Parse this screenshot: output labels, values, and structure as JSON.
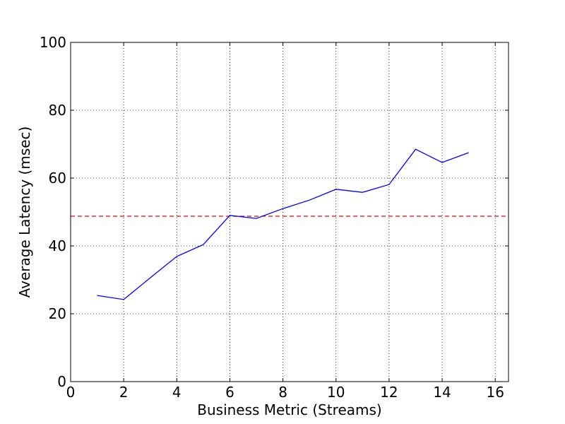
{
  "chart_data": {
    "type": "line",
    "xlabel": "Business Metric (Streams)",
    "ylabel": "Average Latency (msec)",
    "x": [
      1,
      2,
      3,
      4,
      5,
      6,
      7,
      8,
      9,
      10,
      11,
      12,
      13,
      14,
      15
    ],
    "series": [
      {
        "color": "#0000ff",
        "values": [
          25.4,
          24.2,
          30.6,
          36.9,
          40.4,
          49.0,
          48.1,
          51.0,
          53.5,
          56.7,
          55.8,
          58.1,
          68.5,
          64.6,
          67.5
        ]
      }
    ],
    "reference_line": {
      "value": 48.75,
      "color": "#ff0000"
    },
    "xlim": [
      0,
      16.5
    ],
    "xticks": [
      0,
      2,
      4,
      6,
      8,
      10,
      12,
      14,
      16
    ],
    "ylim": [
      0,
      100
    ],
    "yticks": [
      0,
      20,
      40,
      60,
      80,
      100
    ],
    "grid": true
  }
}
